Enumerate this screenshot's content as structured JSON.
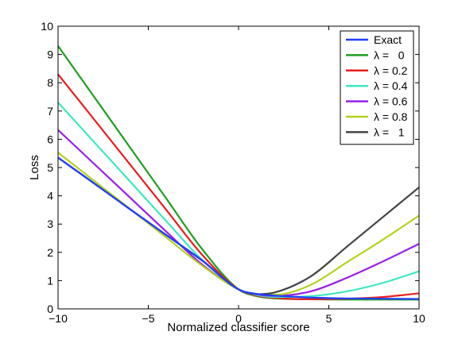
{
  "chart_data": {
    "type": "line",
    "title": "",
    "xlabel": "Normalized classifier score",
    "ylabel": "Loss",
    "xlim": [
      -10,
      10
    ],
    "ylim": [
      0,
      10
    ],
    "xticks": [
      -10,
      -5,
      0,
      5,
      10
    ],
    "xtick_labels": [
      "−10",
      "−5",
      "0",
      "5",
      "10"
    ],
    "yticks": [
      0,
      1,
      2,
      3,
      4,
      5,
      6,
      7,
      8,
      9,
      10
    ],
    "ytick_labels": [
      "0",
      "1",
      "2",
      "3",
      "4",
      "5",
      "6",
      "7",
      "8",
      "9",
      "10"
    ],
    "grid": false,
    "legend_position": "top-right",
    "x": [
      -10,
      -8,
      -6,
      -4,
      -2,
      0,
      1,
      2,
      4,
      6,
      8,
      10
    ],
    "series": [
      {
        "name": "Exact",
        "color": "#1f3fff",
        "values": [
          5.35,
          4.44,
          3.52,
          2.61,
          1.71,
          0.69,
          0.53,
          0.47,
          0.4,
          0.37,
          0.36,
          0.35
        ]
      },
      {
        "name": "λ =   0",
        "color": "#1f9e1f",
        "values": [
          9.3,
          7.5,
          5.7,
          3.9,
          2.1,
          0.69,
          0.45,
          0.37,
          0.34,
          0.33,
          0.33,
          0.33
        ]
      },
      {
        "name": "λ = 0.2",
        "color": "#e81e1e",
        "values": [
          8.3,
          6.7,
          5.1,
          3.5,
          1.9,
          0.69,
          0.47,
          0.39,
          0.34,
          0.36,
          0.42,
          0.55
        ]
      },
      {
        "name": "λ = 0.4",
        "color": "#3de8c0",
        "values": [
          7.3,
          5.9,
          4.5,
          3.1,
          1.72,
          0.69,
          0.49,
          0.42,
          0.45,
          0.62,
          0.92,
          1.33
        ]
      },
      {
        "name": "λ = 0.6",
        "color": "#9b1ee8",
        "values": [
          6.33,
          5.13,
          3.93,
          2.73,
          1.56,
          0.69,
          0.51,
          0.46,
          0.62,
          1.1,
          1.68,
          2.3
        ]
      },
      {
        "name": "λ = 0.8",
        "color": "#b4d21e",
        "values": [
          5.53,
          4.53,
          3.53,
          2.52,
          1.52,
          0.69,
          0.52,
          0.5,
          0.85,
          1.65,
          2.45,
          3.3
        ]
      },
      {
        "name": "λ =   1",
        "color": "#444444",
        "values": [
          5.35,
          4.44,
          3.52,
          2.61,
          1.7,
          0.69,
          0.52,
          0.58,
          1.15,
          2.2,
          3.25,
          4.3
        ]
      }
    ]
  }
}
